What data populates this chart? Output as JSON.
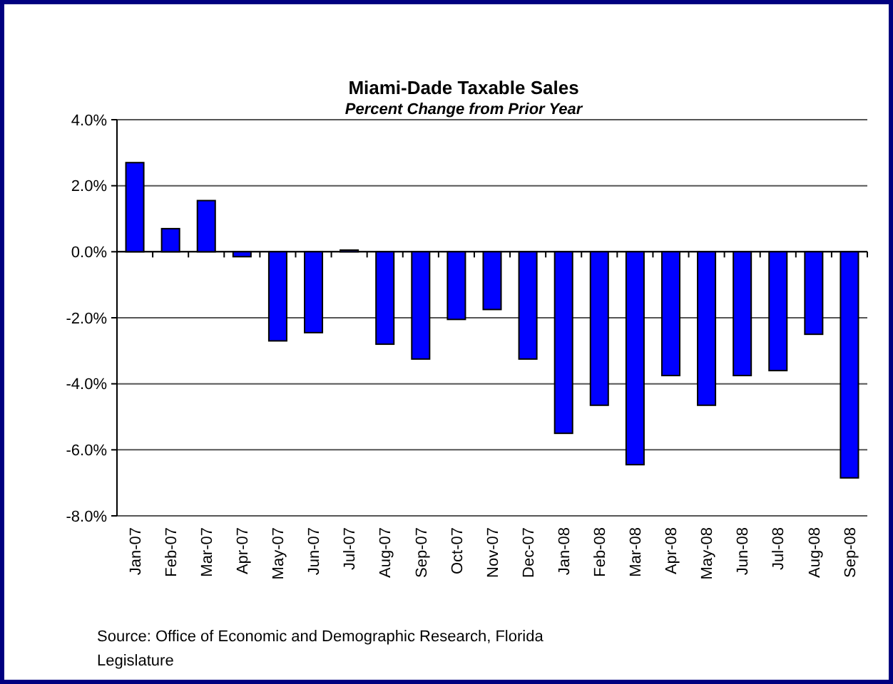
{
  "chart_data": {
    "type": "bar",
    "title": "Miami-Dade Taxable Sales",
    "subtitle": "Percent Change from Prior Year",
    "categories": [
      "Jan-07",
      "Feb-07",
      "Mar-07",
      "Apr-07",
      "May-07",
      "Jun-07",
      "Jul-07",
      "Aug-07",
      "Sep-07",
      "Oct-07",
      "Nov-07",
      "Dec-07",
      "Jan-08",
      "Feb-08",
      "Mar-08",
      "Apr-08",
      "May-08",
      "Jun-08",
      "Jul-08",
      "Aug-08",
      "Sep-08"
    ],
    "values": [
      2.7,
      0.7,
      1.55,
      -0.15,
      -2.7,
      -2.45,
      0.05,
      -2.8,
      -3.25,
      -2.05,
      -1.75,
      -3.25,
      -5.5,
      -4.65,
      -6.45,
      -3.75,
      -4.65,
      -3.75,
      -3.6,
      -2.5,
      -6.85
    ],
    "color": "#0000ff",
    "ylim": [
      -8,
      4
    ],
    "yticks": [
      {
        "value": -8,
        "label": "-8.0%"
      },
      {
        "value": -6,
        "label": "-6.0%"
      },
      {
        "value": -4,
        "label": "-4.0%"
      },
      {
        "value": -2,
        "label": "-2.0%"
      },
      {
        "value": 0,
        "label": "0.0%"
      },
      {
        "value": 2,
        "label": "2.0%"
      },
      {
        "value": 4,
        "label": "4.0%"
      }
    ],
    "grid": "y",
    "annotations": [
      "Source: Office of Economic and Demographic Research, Florida Legislature"
    ]
  }
}
